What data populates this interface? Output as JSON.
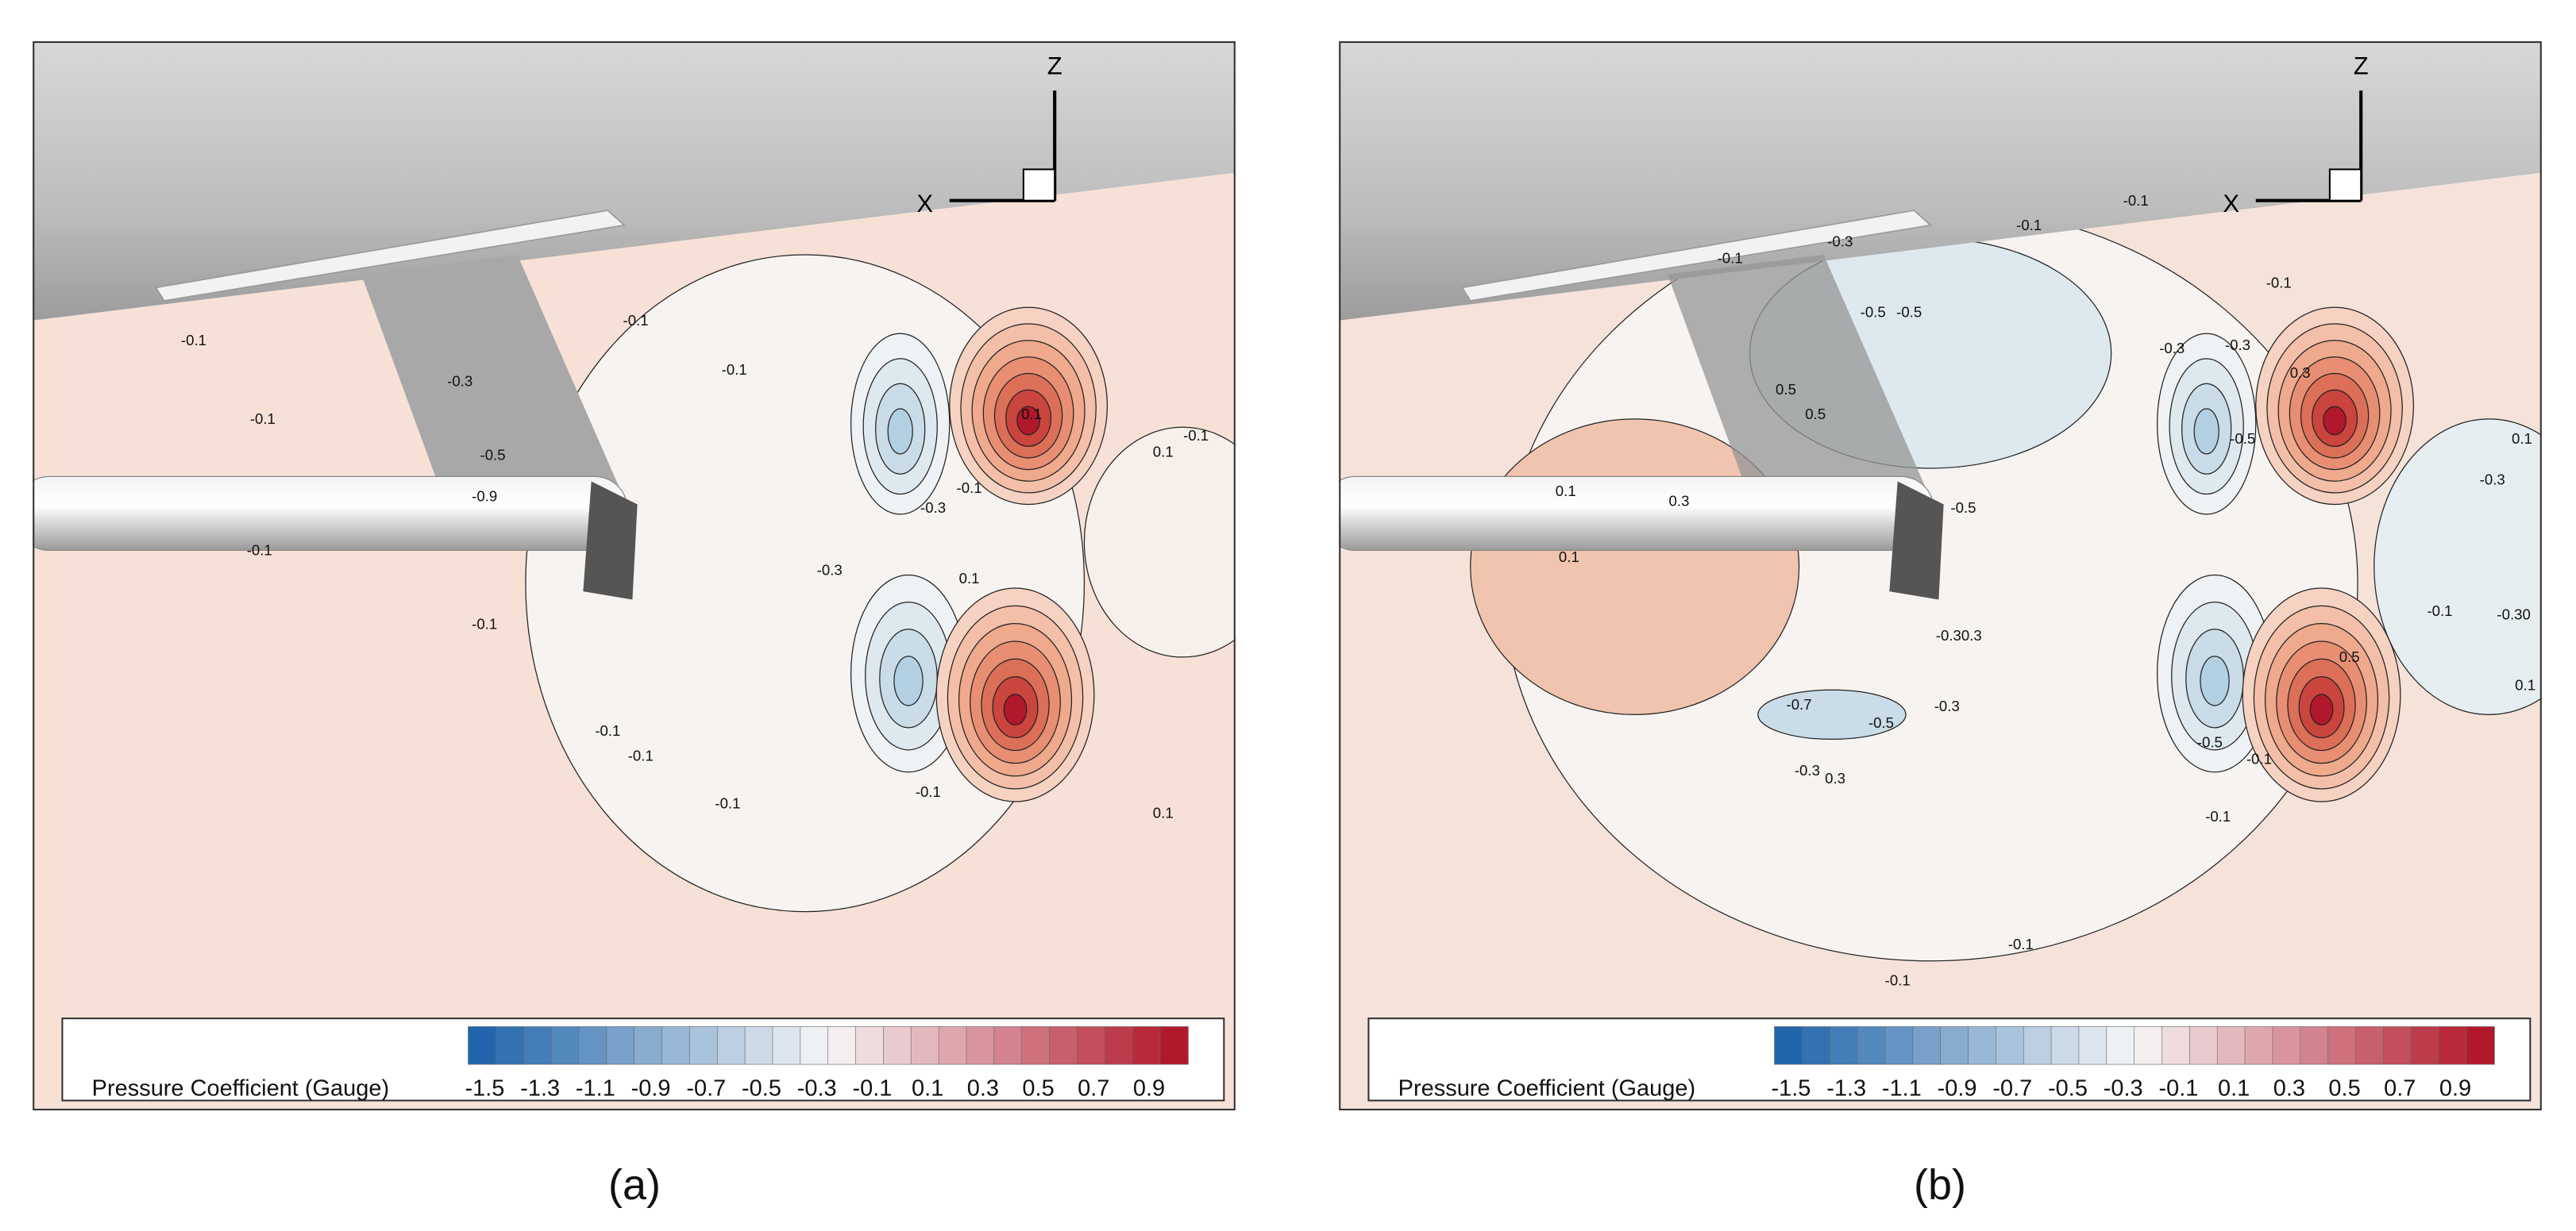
{
  "panels": [
    {
      "label": "(a)",
      "axis_x": "X",
      "axis_z": "Z",
      "legend_title": "Pressure Coefficient (Gauge)",
      "legend_ticks": [
        "-1.5",
        "-1.3",
        "-1.1",
        "-0.9",
        "-0.7",
        "-0.5",
        "-0.3",
        "-0.1",
        "0.1",
        "0.3",
        "0.5",
        "0.7",
        "0.9"
      ],
      "contour_labels": [
        "-0.1",
        "-0.1",
        "-0.3",
        "-0.5",
        "-0.9",
        "-0.1",
        "-0.1",
        "-0.1",
        "-0.1",
        "-0.1",
        "-0.1",
        "-0.1",
        "-0.3",
        "-0.3",
        "-0.1",
        "0.1",
        "0.1",
        "-0.1",
        "0.1",
        "0.1",
        "-0.1"
      ]
    },
    {
      "label": "(b)",
      "axis_x": "X",
      "axis_z": "Z",
      "legend_title": "Pressure Coefficient (Gauge)",
      "legend_ticks": [
        "-1.5",
        "-1.3",
        "-1.1",
        "-0.9",
        "-0.7",
        "-0.5",
        "-0.3",
        "-0.1",
        "0.1",
        "0.3",
        "0.5",
        "0.7",
        "0.9"
      ],
      "contour_labels": [
        "-0.1",
        "-0.3",
        "-0.1",
        "-0.1",
        "-0.5",
        "-0.5",
        "0.5",
        "0.5",
        "-0.3",
        "-0.3",
        "-0.1",
        "0.3",
        "-0.5",
        "0.1",
        "0.3",
        "0.1",
        "-0.5",
        "-0.3",
        "0.3",
        "-0.3",
        "-0.7",
        "-0.5",
        "-0.3",
        "0.3",
        "-0.5",
        "0.5",
        "-0.1",
        "-0.1",
        "-0.1",
        "-0.1",
        "-0.1",
        "-0.3",
        "-0.30",
        "0.1",
        "0.1"
      ]
    }
  ]
}
